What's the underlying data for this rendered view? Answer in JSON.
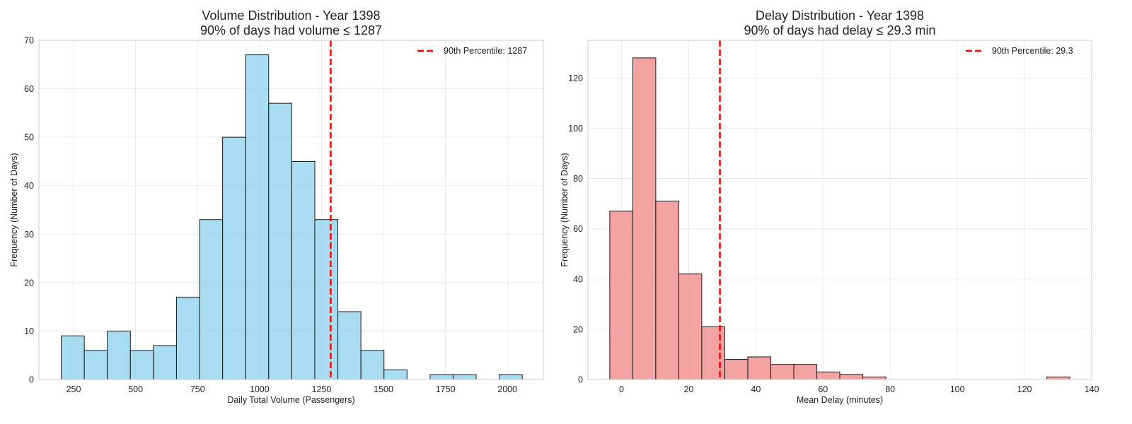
{
  "chart_data": [
    {
      "type": "histogram",
      "title_line1": "Volume Distribution - Year 1398",
      "title_line2": "90% of days had volume ≤ 1287",
      "xlabel": "Daily Total Volume (Passengers)",
      "ylabel": "Frequency (Number of Days)",
      "xlim": [
        110,
        2145
      ],
      "ylim": [
        0,
        70
      ],
      "xticks": [
        250,
        500,
        750,
        1000,
        1250,
        1500,
        1750,
        2000
      ],
      "yticks": [
        0,
        10,
        20,
        30,
        40,
        50,
        60,
        70
      ],
      "bin_start": 200,
      "bin_width": 93,
      "counts": [
        9,
        6,
        10,
        6,
        7,
        17,
        33,
        50,
        67,
        57,
        45,
        33,
        14,
        6,
        2,
        0,
        1,
        1,
        0,
        1
      ],
      "bar_color": "#87CEEB",
      "percentile_line": {
        "value": 1287,
        "label": "90th Percentile: 1287",
        "color": "#FF0000"
      },
      "grid": true,
      "legend_position": "top-right"
    },
    {
      "type": "histogram",
      "title_line1": "Delay Distribution - Year 1398",
      "title_line2": "90% of days had delay ≤ 29.3 min",
      "xlabel": "Mean Delay (minutes)",
      "ylabel": "Frequency (Number of Days)",
      "xlim": [
        -10,
        140
      ],
      "ylim": [
        0,
        135
      ],
      "xticks": [
        0,
        20,
        40,
        60,
        80,
        100,
        120,
        140
      ],
      "yticks": [
        0,
        20,
        40,
        60,
        80,
        100,
        120
      ],
      "bin_start": -3.5,
      "bin_width": 6.85,
      "counts": [
        67,
        128,
        71,
        42,
        21,
        8,
        9,
        6,
        6,
        3,
        2,
        1,
        0,
        0,
        0,
        0,
        0,
        0,
        0,
        1
      ],
      "bar_color": "#F08080",
      "percentile_line": {
        "value": 29.3,
        "label": "90th Percentile: 29.3",
        "color": "#FF0000"
      },
      "grid": true,
      "legend_position": "top-right"
    }
  ]
}
